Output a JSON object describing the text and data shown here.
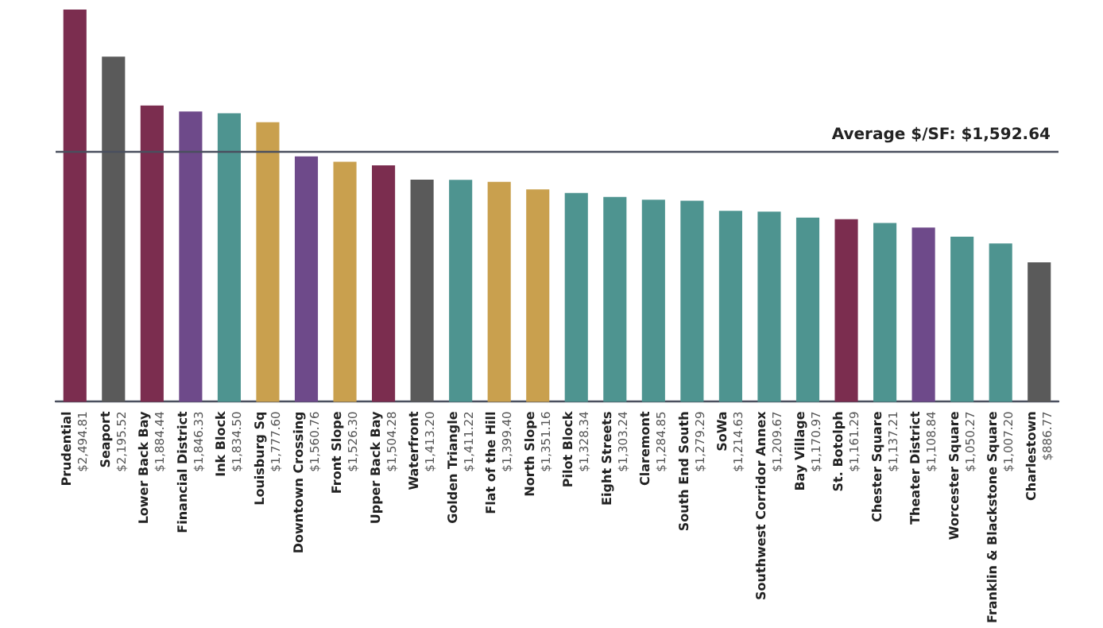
{
  "chart_data": {
    "type": "bar",
    "categories": [
      "Prudential",
      "Seaport",
      "Lower Back Bay",
      "Financial District",
      "Ink Block",
      "Louisburg Sq",
      "Downtown Crossing",
      "Front Slope",
      "Upper Back Bay",
      "Waterfront",
      "Golden Triangle",
      "Flat of the Hill",
      "North Slope",
      "Pilot Block",
      "Eight Streets",
      "Claremont",
      "South End South",
      "SoWa",
      "Southwest Corridor Annex",
      "Bay Village",
      "St. Botolph",
      "Chester Square",
      "Theater District",
      "Worcester Square",
      "Franklin & Blackstone Square",
      "Charlestown"
    ],
    "values": [
      2494.81,
      2195.52,
      1884.44,
      1846.33,
      1834.5,
      1777.6,
      1560.76,
      1526.3,
      1504.28,
      1413.2,
      1411.22,
      1399.4,
      1351.16,
      1328.34,
      1303.24,
      1284.85,
      1279.29,
      1214.63,
      1209.67,
      1170.97,
      1161.29,
      1137.21,
      1108.84,
      1050.27,
      1007.2,
      886.77
    ],
    "value_labels": [
      "$2,494.81",
      "$2,195.52",
      "$1,884.44",
      "$1,846.33",
      "$1,834.50",
      "$1,777.60",
      "$1,560.76",
      "$1,526.30",
      "$1,504.28",
      "$1,413.20",
      "$1,411.22",
      "$1,399.40",
      "$1,351.16",
      "$1,328.34",
      "$1,303.24",
      "$1,284.85",
      "$1,279.29",
      "$1,214.63",
      "$1,209.67",
      "$1,170.97",
      "$1,161.29",
      "$1,137.21",
      "$1,108.84",
      "$1,050.27",
      "$1,007.20",
      "$886.77"
    ],
    "colors": [
      "#7b2d4f",
      "#5a5a5a",
      "#7b2d4f",
      "#6e4a8a",
      "#4e9490",
      "#c9a04e",
      "#6e4a8a",
      "#c9a04e",
      "#7b2d4f",
      "#5a5a5a",
      "#4e9490",
      "#c9a04e",
      "#c9a04e",
      "#4e9490",
      "#4e9490",
      "#4e9490",
      "#4e9490",
      "#4e9490",
      "#4e9490",
      "#4e9490",
      "#7b2d4f",
      "#4e9490",
      "#6e4a8a",
      "#4e9490",
      "#4e9490",
      "#5a5a5a"
    ],
    "ref_lines": [
      {
        "axis": "y",
        "value": 1592.64,
        "label": "Average $/SF: $1,592.64",
        "color": "#4a4f5e"
      }
    ],
    "grid": false
  }
}
